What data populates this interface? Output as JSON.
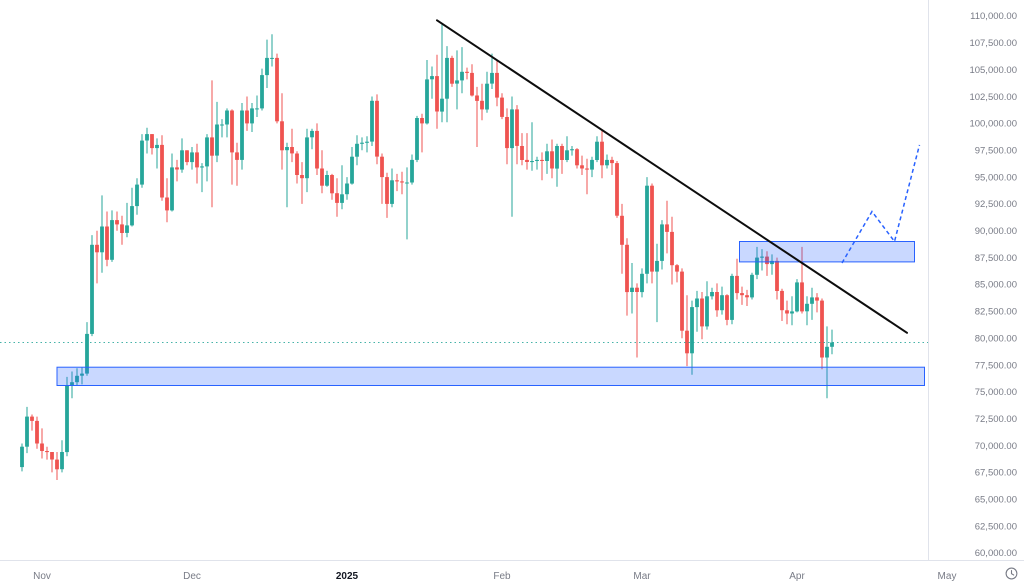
{
  "chart_data": {
    "type": "candlestick",
    "title": "",
    "y_axis": {
      "min": 60000,
      "max": 110000,
      "step": 2500,
      "tick_labels": [
        "110,000.00",
        "107,500.00",
        "105,000.00",
        "102,500.00",
        "100,000.00",
        "97,500.00",
        "95,000.00",
        "92,500.00",
        "90,000.00",
        "87,500.00",
        "85,000.00",
        "82,500.00",
        "80,000.00",
        "77,500.00",
        "75,000.00",
        "72,500.00",
        "70,000.00",
        "67,500.00",
        "65,000.00",
        "62,500.00",
        "60,000.00"
      ]
    },
    "x_axis": {
      "ticks": [
        {
          "label": "Nov",
          "index": 4,
          "emphasis": false
        },
        {
          "label": "Dec",
          "index": 34,
          "emphasis": false
        },
        {
          "label": "2025",
          "index": 65,
          "emphasis": true
        },
        {
          "label": "Feb",
          "index": 96,
          "emphasis": false
        },
        {
          "label": "Mar",
          "index": 124,
          "emphasis": false
        },
        {
          "label": "Apr",
          "index": 155,
          "emphasis": false
        },
        {
          "label": "May",
          "index": 185,
          "emphasis": false
        }
      ]
    },
    "candles": [
      [
        68000,
        70200,
        67600,
        69900
      ],
      [
        69900,
        73600,
        69300,
        72700
      ],
      [
        72700,
        72900,
        71400,
        72300
      ],
      [
        72300,
        72700,
        69700,
        70200
      ],
      [
        70200,
        71600,
        68800,
        69500
      ],
      [
        69500,
        69900,
        68700,
        69400
      ],
      [
        69400,
        69400,
        67500,
        68700
      ],
      [
        68700,
        69400,
        66800,
        67800
      ],
      [
        67800,
        70500,
        67500,
        69400
      ],
      [
        69400,
        76400,
        69000,
        75600
      ],
      [
        75600,
        76900,
        74400,
        75900
      ],
      [
        75900,
        77200,
        75600,
        76500
      ],
      [
        76500,
        77300,
        75700,
        76700
      ],
      [
        76700,
        81500,
        76500,
        80400
      ],
      [
        80400,
        89600,
        80200,
        88700
      ],
      [
        88700,
        90000,
        85100,
        88000
      ],
      [
        88000,
        93300,
        86100,
        90400
      ],
      [
        90400,
        91800,
        86700,
        87300
      ],
      [
        87300,
        91900,
        87100,
        91000
      ],
      [
        91000,
        91800,
        90000,
        90600
      ],
      [
        90600,
        91400,
        88700,
        89800
      ],
      [
        89800,
        92600,
        89400,
        90500
      ],
      [
        90500,
        94000,
        90400,
        92300
      ],
      [
        92300,
        94900,
        91500,
        94300
      ],
      [
        94300,
        99000,
        94000,
        98400
      ],
      [
        98400,
        99600,
        97200,
        99000
      ],
      [
        99000,
        99000,
        97100,
        97700
      ],
      [
        97700,
        98600,
        95800,
        98000
      ],
      [
        98000,
        98900,
        92800,
        93100
      ],
      [
        93100,
        94900,
        90800,
        91900
      ],
      [
        91900,
        97200,
        91800,
        95900
      ],
      [
        95900,
        96600,
        94600,
        95700
      ],
      [
        95700,
        98600,
        95400,
        97500
      ],
      [
        97500,
        97500,
        96100,
        96400
      ],
      [
        96400,
        97800,
        95700,
        97300
      ],
      [
        97300,
        98100,
        94400,
        95900
      ],
      [
        95900,
        96300,
        93600,
        96000
      ],
      [
        96000,
        99000,
        94600,
        98700
      ],
      [
        98700,
        104000,
        92200,
        97000
      ],
      [
        97000,
        102000,
        96400,
        99900
      ],
      [
        99900,
        100400,
        98700,
        99900
      ],
      [
        99900,
        101400,
        98700,
        101200
      ],
      [
        101200,
        101300,
        94300,
        97300
      ],
      [
        97300,
        98200,
        94200,
        96600
      ],
      [
        96600,
        101900,
        95700,
        101200
      ],
      [
        101200,
        102500,
        99300,
        100000
      ],
      [
        100000,
        101900,
        99200,
        101400
      ],
      [
        101400,
        102600,
        100600,
        101400
      ],
      [
        101400,
        105100,
        101200,
        104500
      ],
      [
        104500,
        107800,
        103300,
        106100
      ],
      [
        106100,
        108300,
        105300,
        106100
      ],
      [
        106100,
        106500,
        100000,
        100200
      ],
      [
        100200,
        102800,
        95700,
        97500
      ],
      [
        97500,
        98200,
        92200,
        97800
      ],
      [
        97800,
        99500,
        96400,
        97200
      ],
      [
        97200,
        97400,
        94400,
        95200
      ],
      [
        95200,
        96400,
        92500,
        94900
      ],
      [
        94900,
        99500,
        93600,
        98700
      ],
      [
        98700,
        99500,
        97600,
        99300
      ],
      [
        99300,
        100000,
        95200,
        95800
      ],
      [
        95800,
        97500,
        93500,
        94200
      ],
      [
        94200,
        95600,
        94100,
        95200
      ],
      [
        95200,
        95300,
        92900,
        93500
      ],
      [
        93500,
        94900,
        91300,
        92600
      ],
      [
        92600,
        96100,
        92000,
        93400
      ],
      [
        93400,
        95000,
        92900,
        94400
      ],
      [
        94400,
        97800,
        94300,
        96900
      ],
      [
        96900,
        98900,
        96100,
        98100
      ],
      [
        98100,
        98700,
        97500,
        98200
      ],
      [
        98200,
        98800,
        97300,
        98300
      ],
      [
        98300,
        102500,
        97900,
        102100
      ],
      [
        102100,
        102700,
        96200,
        96900
      ],
      [
        96900,
        97200,
        92500,
        95000
      ],
      [
        95000,
        95400,
        91200,
        92500
      ],
      [
        92500,
        95800,
        92200,
        94700
      ],
      [
        94700,
        95300,
        93700,
        94600
      ],
      [
        94600,
        95500,
        93400,
        94500
      ],
      [
        94500,
        95900,
        89200,
        94500
      ],
      [
        94500,
        97100,
        94300,
        96600
      ],
      [
        96600,
        100700,
        96400,
        100500
      ],
      [
        100500,
        100900,
        97300,
        100000
      ],
      [
        100000,
        105900,
        99900,
        104100
      ],
      [
        104100,
        105300,
        102300,
        104400
      ],
      [
        104400,
        106400,
        99500,
        101100
      ],
      [
        101100,
        109300,
        100100,
        102300
      ],
      [
        102300,
        107200,
        100100,
        106100
      ],
      [
        106100,
        106300,
        103400,
        103700
      ],
      [
        103700,
        106800,
        101300,
        104000
      ],
      [
        104000,
        107100,
        102800,
        104800
      ],
      [
        104800,
        105200,
        104100,
        104700
      ],
      [
        104700,
        105500,
        102500,
        102600
      ],
      [
        102600,
        103400,
        97800,
        102100
      ],
      [
        102100,
        103700,
        100300,
        101300
      ],
      [
        101300,
        104800,
        101000,
        103700
      ],
      [
        103700,
        106500,
        103200,
        104700
      ],
      [
        104700,
        105900,
        101600,
        102400
      ],
      [
        102400,
        102800,
        100400,
        100600
      ],
      [
        100600,
        101400,
        96200,
        97700
      ],
      [
        97700,
        102500,
        91300,
        101300
      ],
      [
        101300,
        101700,
        96200,
        97900
      ],
      [
        97900,
        99100,
        96100,
        96600
      ],
      [
        96600,
        99100,
        95700,
        96400
      ],
      [
        96400,
        100100,
        95600,
        96500
      ],
      [
        96500,
        96900,
        95700,
        96600
      ],
      [
        96600,
        97300,
        94700,
        96500
      ],
      [
        96500,
        98100,
        95300,
        97400
      ],
      [
        97400,
        98500,
        94900,
        95800
      ],
      [
        95800,
        98100,
        94100,
        97900
      ],
      [
        97900,
        98100,
        95300,
        96600
      ],
      [
        96600,
        98800,
        96400,
        97500
      ],
      [
        97500,
        97900,
        97000,
        97600
      ],
      [
        97600,
        97700,
        95800,
        96100
      ],
      [
        96100,
        97000,
        95200,
        95800
      ],
      [
        95800,
        96700,
        93400,
        95700
      ],
      [
        95700,
        96900,
        95000,
        96600
      ],
      [
        96600,
        98800,
        96400,
        98300
      ],
      [
        98300,
        99400,
        94900,
        96100
      ],
      [
        96100,
        97100,
        95800,
        96600
      ],
      [
        96600,
        96900,
        95200,
        96300
      ],
      [
        96300,
        96500,
        91200,
        91400
      ],
      [
        91400,
        92500,
        86000,
        88700
      ],
      [
        88700,
        89300,
        82100,
        84300
      ],
      [
        84300,
        87000,
        82300,
        84700
      ],
      [
        84700,
        85100,
        78200,
        84300
      ],
      [
        84300,
        86500,
        83800,
        86000
      ],
      [
        86000,
        95000,
        85100,
        94200
      ],
      [
        94200,
        94400,
        85100,
        86200
      ],
      [
        86200,
        88800,
        81500,
        87200
      ],
      [
        87200,
        91000,
        86400,
        90600
      ],
      [
        90600,
        92800,
        87900,
        89900
      ],
      [
        89900,
        91300,
        85000,
        86800
      ],
      [
        86800,
        86900,
        85200,
        86200
      ],
      [
        86200,
        86500,
        80000,
        80700
      ],
      [
        80700,
        84000,
        77400,
        78600
      ],
      [
        78600,
        83500,
        76600,
        82900
      ],
      [
        82900,
        84400,
        80600,
        83700
      ],
      [
        83700,
        84300,
        79900,
        81100
      ],
      [
        81100,
        85300,
        80800,
        83900
      ],
      [
        83900,
        84700,
        83600,
        84300
      ],
      [
        84300,
        85100,
        82000,
        82600
      ],
      [
        82600,
        84800,
        82200,
        84000
      ],
      [
        84000,
        84100,
        81200,
        81700
      ],
      [
        81700,
        86000,
        81300,
        85800
      ],
      [
        85800,
        87400,
        83600,
        84200
      ],
      [
        84200,
        84800,
        83100,
        84000
      ],
      [
        84000,
        84500,
        83000,
        83800
      ],
      [
        83800,
        86100,
        83600,
        85900
      ],
      [
        85900,
        88500,
        85500,
        87500
      ],
      [
        87500,
        88300,
        86300,
        87600
      ],
      [
        87600,
        88100,
        85800,
        86900
      ],
      [
        86900,
        87800,
        85900,
        87200
      ],
      [
        87200,
        87500,
        83600,
        84400
      ],
      [
        84400,
        84600,
        81600,
        82600
      ],
      [
        82600,
        83500,
        81300,
        82300
      ],
      [
        82300,
        83900,
        81200,
        82500
      ],
      [
        82500,
        85500,
        82400,
        85200
      ],
      [
        85200,
        88500,
        82300,
        82500
      ],
      [
        82500,
        83900,
        81200,
        83200
      ],
      [
        83200,
        84700,
        81700,
        83800
      ],
      [
        83800,
        84200,
        82400,
        83500
      ],
      [
        83500,
        83700,
        77100,
        78200
      ],
      [
        78200,
        81100,
        74400,
        79200
      ],
      [
        79200,
        80800,
        78500,
        79600
      ]
    ],
    "annotations": {
      "trendline": {
        "from": {
          "index": 83,
          "price": 109600
        },
        "to": {
          "index": 177,
          "price": 80500
        }
      },
      "resistance_box": {
        "from_index": 143.5,
        "to_index": 178.5,
        "price_top": 89000,
        "price_bottom": 87100
      },
      "support_box": {
        "from_index": 7,
        "to_index": 180.5,
        "price_top": 77300,
        "price_bottom": 75600
      },
      "projection_path": [
        {
          "index": 164,
          "price": 87000
        },
        {
          "index": 170,
          "price": 91800
        },
        {
          "index": 174.5,
          "price": 89000
        },
        {
          "index": 179.5,
          "price": 98000
        }
      ],
      "current_price_line": {
        "price": 79600
      }
    },
    "colors": {
      "up": "#26a69a",
      "down": "#ef5350",
      "trendline": "#0d0d0d",
      "box_fill": "rgba(41,98,255,0.25)",
      "box_border": "#2962ff",
      "projection": "#2962ff",
      "price_line": "#26a69a",
      "axis_text": "#787b86",
      "axis_text_strong": "#131722",
      "axis_line": "#e0e3eb",
      "background": "#ffffff"
    }
  }
}
